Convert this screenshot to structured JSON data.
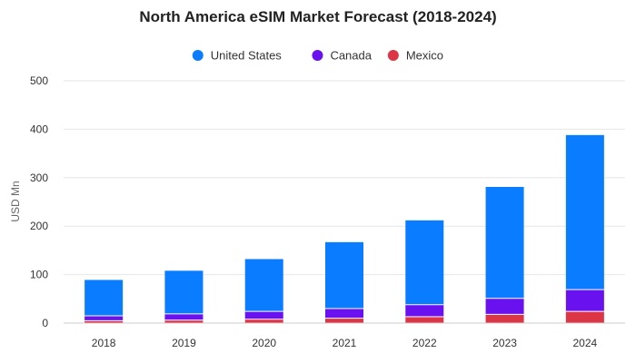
{
  "chart_data": {
    "type": "bar",
    "stacked": true,
    "title": "North America eSIM Market Forecast (2018-2024)",
    "xlabel": "",
    "ylabel": "USD Mn",
    "ylim": [
      0,
      500
    ],
    "yticks": [
      0,
      100,
      200,
      300,
      400,
      500
    ],
    "grid": true,
    "legend_position": "top-center",
    "categories": [
      "2018",
      "2019",
      "2020",
      "2021",
      "2022",
      "2023",
      "2024"
    ],
    "series": [
      {
        "name": "Mexico",
        "color": "#dc3545",
        "values": [
          5,
          6,
          8,
          10,
          13,
          18,
          24
        ]
      },
      {
        "name": "Canada",
        "color": "#6a11f0",
        "values": [
          10,
          13,
          16,
          20,
          25,
          33,
          45
        ]
      },
      {
        "name": "United States",
        "color": "#0a7cff",
        "values": [
          74,
          89,
          108,
          137,
          174,
          230,
          319
        ]
      }
    ],
    "legend_order": [
      "United States",
      "Canada",
      "Mexico"
    ]
  }
}
